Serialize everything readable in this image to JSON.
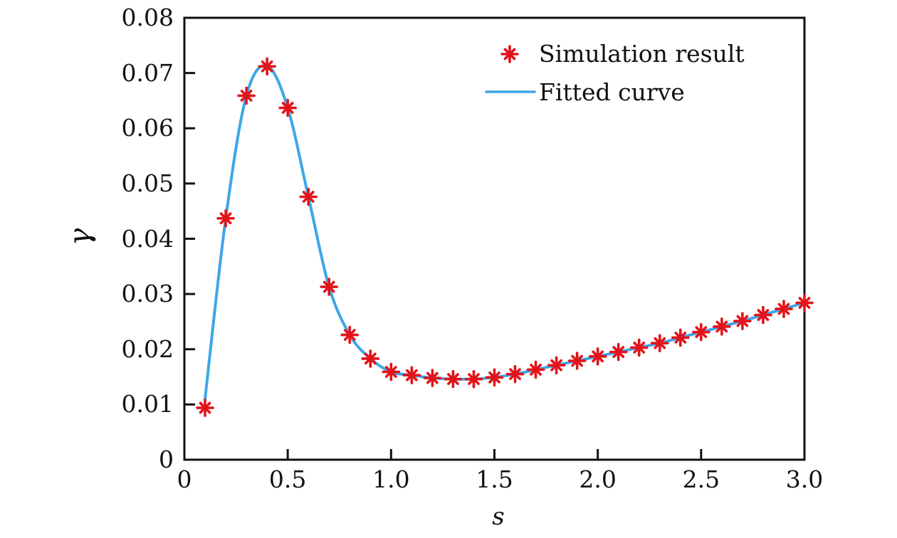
{
  "chart_data": {
    "type": "scatter",
    "title": "",
    "xlabel": "s",
    "ylabel": "γ",
    "xlim": [
      0,
      3.0
    ],
    "ylim": [
      0,
      0.08
    ],
    "grid": false,
    "frame": "full-box",
    "tick_direction": "in",
    "x_ticks": [
      {
        "value": 0,
        "label": "0"
      },
      {
        "value": 0.5,
        "label": "0.5"
      },
      {
        "value": 1.0,
        "label": "1.0"
      },
      {
        "value": 1.5,
        "label": "1.5"
      },
      {
        "value": 2.0,
        "label": "2.0"
      },
      {
        "value": 2.5,
        "label": "2.5"
      },
      {
        "value": 3.0,
        "label": "3.0"
      }
    ],
    "y_ticks": [
      {
        "value": 0,
        "label": "0"
      },
      {
        "value": 0.01,
        "label": "0.01"
      },
      {
        "value": 0.02,
        "label": "0.02"
      },
      {
        "value": 0.03,
        "label": "0.03"
      },
      {
        "value": 0.04,
        "label": "0.04"
      },
      {
        "value": 0.05,
        "label": "0.05"
      },
      {
        "value": 0.06,
        "label": "0.06"
      },
      {
        "value": 0.07,
        "label": "0.07"
      },
      {
        "value": 0.08,
        "label": "0.08"
      }
    ],
    "legend": {
      "position": "upper-right",
      "frame": false,
      "entries": [
        {
          "label": "Simulation result",
          "type": "marker",
          "marker": "asterisk",
          "color": "#e3131a"
        },
        {
          "label": "Fitted curve",
          "type": "line",
          "color": "#3fa6e8"
        }
      ]
    },
    "series": [
      {
        "name": "Simulation result",
        "type": "scatter",
        "marker": "asterisk",
        "color": "#e3131a",
        "x": [
          0.1,
          0.2,
          0.3,
          0.4,
          0.5,
          0.6,
          0.7,
          0.8,
          0.9,
          1.0,
          1.1,
          1.2,
          1.3,
          1.4,
          1.5,
          1.6,
          1.7,
          1.8,
          1.9,
          2.0,
          2.1,
          2.2,
          2.3,
          2.4,
          2.5,
          2.6,
          2.7,
          2.8,
          2.9,
          3.0
        ],
        "y": [
          0.0094,
          0.0437,
          0.0659,
          0.0712,
          0.0637,
          0.0476,
          0.0313,
          0.0226,
          0.0183,
          0.0159,
          0.0153,
          0.0148,
          0.0146,
          0.0146,
          0.0149,
          0.0155,
          0.0163,
          0.0171,
          0.0179,
          0.0187,
          0.0195,
          0.0203,
          0.0211,
          0.0221,
          0.0231,
          0.0241,
          0.0251,
          0.0262,
          0.0273,
          0.0284
        ]
      },
      {
        "name": "Fitted curve",
        "type": "line",
        "color": "#3fa6e8",
        "x": [
          0.1,
          0.2,
          0.3,
          0.4,
          0.5,
          0.6,
          0.7,
          0.8,
          0.9,
          1.0,
          1.1,
          1.2,
          1.3,
          1.4,
          1.5,
          1.6,
          1.7,
          1.8,
          1.9,
          2.0,
          2.1,
          2.2,
          2.3,
          2.4,
          2.5,
          2.6,
          2.7,
          2.8,
          2.9,
          3.0
        ],
        "y": [
          0.011,
          0.0437,
          0.0659,
          0.0713,
          0.0637,
          0.0476,
          0.0313,
          0.0226,
          0.0183,
          0.0159,
          0.0153,
          0.0148,
          0.0146,
          0.0146,
          0.0149,
          0.0155,
          0.0163,
          0.0171,
          0.0179,
          0.0187,
          0.0195,
          0.0203,
          0.0211,
          0.0221,
          0.0231,
          0.0241,
          0.0251,
          0.0262,
          0.0273,
          0.0284
        ]
      }
    ],
    "colors": {
      "marker": "#e3131a",
      "curve": "#3fa6e8",
      "axis": "#111111",
      "background": "#ffffff"
    }
  }
}
